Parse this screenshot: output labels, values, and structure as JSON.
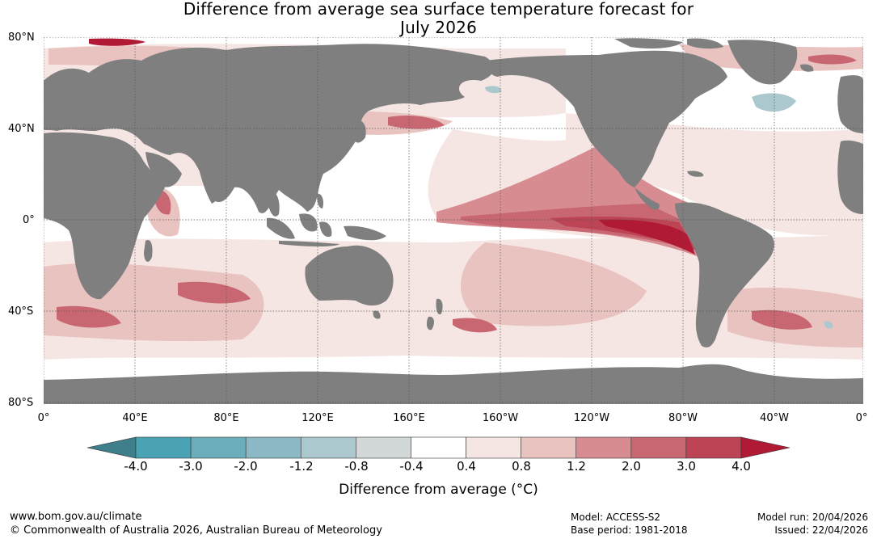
{
  "title_line1": "Difference from average sea surface temperature forecast for",
  "title_line2": "July 2026",
  "lat_labels": [
    "80°N",
    "40°N",
    "0°",
    "40°S",
    "80°S"
  ],
  "lon_labels": [
    "0°",
    "40°E",
    "80°E",
    "120°E",
    "160°E",
    "160°W",
    "120°W",
    "80°W",
    "40°W",
    "0°"
  ],
  "colorbar": {
    "ticks": [
      "-4.0",
      "-3.0",
      "-2.0",
      "-1.2",
      "-0.8",
      "-0.4",
      "0.4",
      "0.8",
      "1.2",
      "2.0",
      "3.0",
      "4.0"
    ],
    "colors": [
      "#4aa3b5",
      "#6aaebb",
      "#8ab8c4",
      "#abc8ce",
      "#d2d8d7",
      "#ffffff",
      "#f6e6e3",
      "#e8c3c0",
      "#d78c92",
      "#c86672",
      "#bd4454"
    ],
    "low_extend_color": "#3f7f8b",
    "high_extend_color": "#b01a34",
    "title": "Difference from average (°C)"
  },
  "footer": {
    "website": "www.bom.gov.au/climate",
    "copyright": "© Commonwealth of Australia 2026, Australian Bureau of Meteorology",
    "model": "Model: ACCESS-S2",
    "base_period": "Base period: 1981-2018",
    "model_run": "Model run: 20/04/2026",
    "issued": "Issued: 22/04/2026"
  },
  "colors": {
    "land": "#7f7f7f",
    "grid": "#555555"
  }
}
